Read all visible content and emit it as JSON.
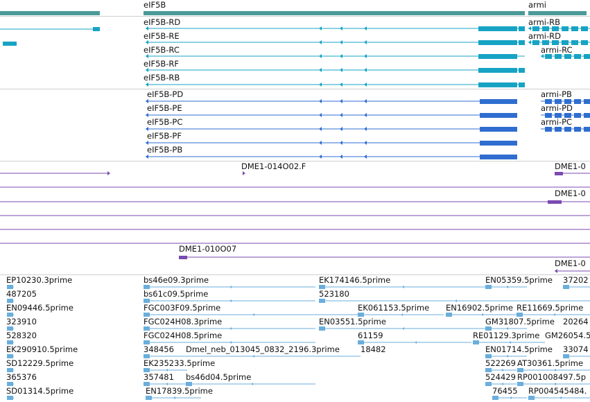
{
  "colors": {
    "gene": "#4a9a98",
    "transcript_a": "#17a3c4",
    "transcript_b": "#2f6ed0",
    "est": "#7a4ab0",
    "cdna": "#6aaedc",
    "separator": "#cfcfcf"
  },
  "genes": [
    {
      "label": ""
    },
    {
      "label": "eIF5B"
    },
    {
      "label": "armi"
    }
  ],
  "transcripts_a": [
    {
      "label": "eIF5B-RD"
    },
    {
      "label": "eIF5B-RE"
    },
    {
      "label": "eIF5B-RC"
    },
    {
      "label": "eIF5B-RF"
    },
    {
      "label": "eIF5B-RB"
    },
    {
      "label": "armi-RB"
    },
    {
      "label": "armi-RD"
    },
    {
      "label": "armi-RC"
    }
  ],
  "transcripts_b": [
    {
      "label": "eIF5B-PD"
    },
    {
      "label": "eIF5B-PE"
    },
    {
      "label": "eIF5B-PC"
    },
    {
      "label": "eIF5B-PF"
    },
    {
      "label": "eIF5B-PB"
    },
    {
      "label": "armi-PB"
    },
    {
      "label": "armi-PD"
    },
    {
      "label": "armi-PC"
    }
  ],
  "ests": [
    {
      "label": "DME1-014O02.F"
    },
    {
      "label": "DME1-0"
    },
    {
      "label": "DME1-0"
    },
    {
      "label": "DME1-010O07"
    },
    {
      "label": "DME1-0"
    }
  ],
  "cdnas": [
    {
      "label": "EP10230.3prime"
    },
    {
      "label": "bs46e09.3prime"
    },
    {
      "label": "EK174146.5prime"
    },
    {
      "label": "EN05359.5prime"
    },
    {
      "label": "37202"
    },
    {
      "label": "487205"
    },
    {
      "label": "bs61c09.5prime"
    },
    {
      "label": "523180"
    },
    {
      "label": "EN09446.5prime"
    },
    {
      "label": "FGC003F09.5prime"
    },
    {
      "label": "EK061153.5prime"
    },
    {
      "label": "EN16902.5prime"
    },
    {
      "label": "RE11669.5prime"
    },
    {
      "label": "323910"
    },
    {
      "label": "FGC024H08.3prime"
    },
    {
      "label": "EN03551.5prime"
    },
    {
      "label": "GM31807.5prime"
    },
    {
      "label": "20264"
    },
    {
      "label": "528320"
    },
    {
      "label": "FGC024H08.5prime"
    },
    {
      "label": "61159"
    },
    {
      "label": "RE01129.3prime"
    },
    {
      "label": "GM26054.5"
    },
    {
      "label": "EK290910.5prime"
    },
    {
      "label": "348456"
    },
    {
      "label": "Dmel_neb_013045_0832_2196.3prime"
    },
    {
      "label": "18482"
    },
    {
      "label": "EN01714.5prime"
    },
    {
      "label": "33074"
    },
    {
      "label": "SD12229.5prime"
    },
    {
      "label": "EK235233.5prime"
    },
    {
      "label": "522269"
    },
    {
      "label": "AT30361.5prime"
    },
    {
      "label": "365376"
    },
    {
      "label": "357481"
    },
    {
      "label": "bs46d04.5prime"
    },
    {
      "label": "524429"
    },
    {
      "label": "RP001008497.5p"
    },
    {
      "label": "SD01314.5prime"
    },
    {
      "label": "EN17839.5prime"
    },
    {
      "label": "76455"
    },
    {
      "label": "RP004545484."
    }
  ]
}
